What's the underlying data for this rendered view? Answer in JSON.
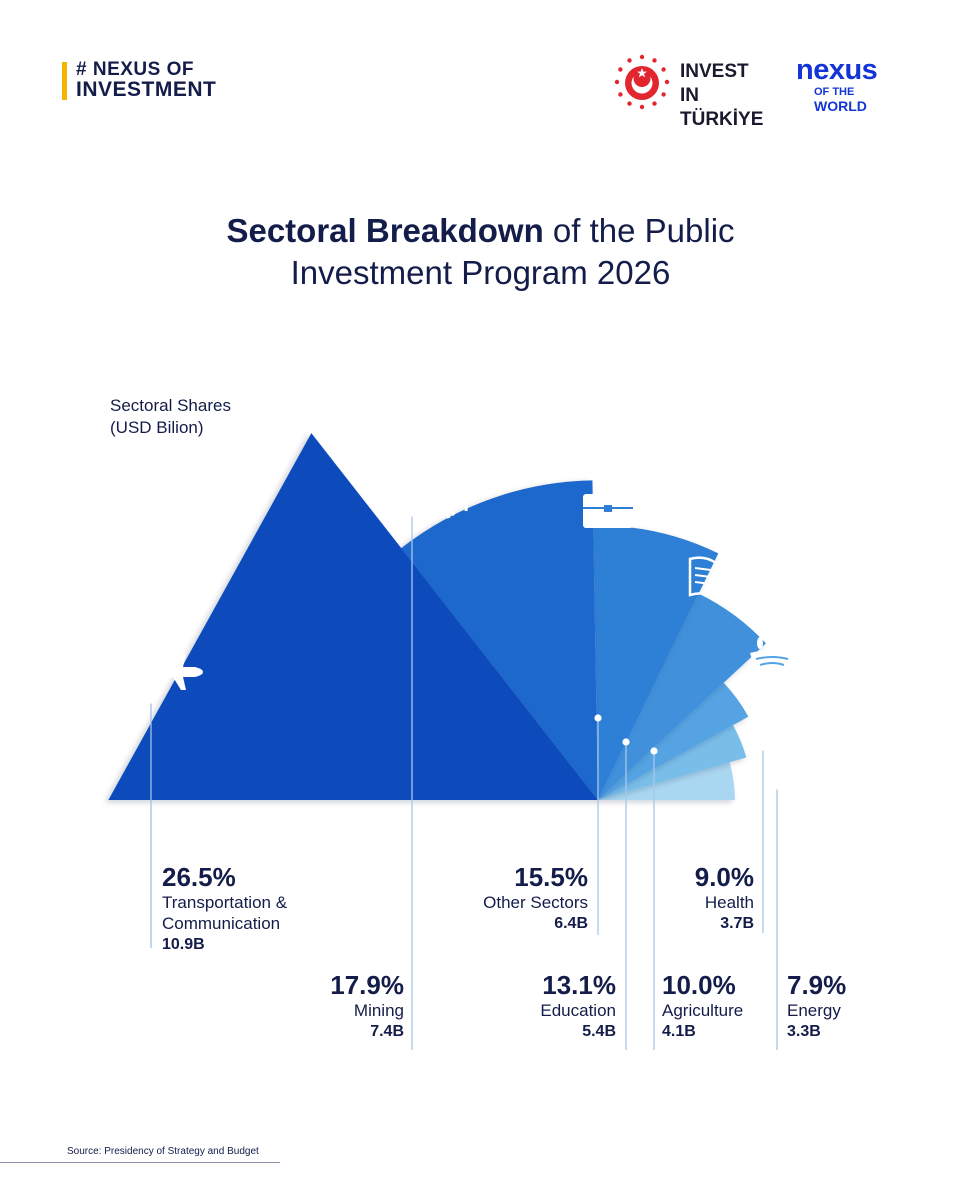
{
  "header": {
    "brand_line1": "# NEXUS OF",
    "brand_line2": "INVESTMENT",
    "invest_line1": "INVEST IN",
    "invest_line2": "TÜRKİYE",
    "nexus_word": "nexus",
    "nexus_sub_small": "OF THE",
    "nexus_sub_big": "WORLD",
    "colors": {
      "accent_yellow": "#f5b400",
      "navy": "#141c4a",
      "nexus_blue": "#1435d6",
      "invest_red": "#e1262d"
    }
  },
  "chart_data": {
    "type": "pie",
    "title_bold": "Sectoral Breakdown",
    "title_rest": " of the Public",
    "title_line2": "Investment Program 2026",
    "subtitle_line1": "Sectoral Shares",
    "subtitle_line2": "(USD Bilion)",
    "series": [
      {
        "name_line1": "Transportation &",
        "name_line2": "Communication",
        "percent": 26.5,
        "percent_label": "26.5%",
        "value": 10.9,
        "value_label": "10.9B",
        "icon": "airplane-icon",
        "color": "#0c4bbd"
      },
      {
        "name_line1": "Mining",
        "name_line2": "",
        "percent": 17.9,
        "percent_label": "17.9%",
        "value": 7.4,
        "value_label": "7.4B",
        "icon": "mining-gear-icon",
        "color": "#1e67cc"
      },
      {
        "name_line1": "Other Sectors",
        "name_line2": "",
        "percent": 15.5,
        "percent_label": "15.5%",
        "value": 6.4,
        "value_label": "6.4B",
        "icon": "briefcase-icon",
        "color": "#2f7fd6"
      },
      {
        "name_line1": "Education",
        "name_line2": "",
        "percent": 13.1,
        "percent_label": "13.1%",
        "value": 5.4,
        "value_label": "5.4B",
        "icon": "book-icon",
        "color": "#3f90dc"
      },
      {
        "name_line1": "Agriculture",
        "name_line2": "",
        "percent": 10.0,
        "percent_label": "10.0%",
        "value": 4.1,
        "value_label": "4.1B",
        "icon": "agriculture-icon",
        "color": "#55a3e2"
      },
      {
        "name_line1": "Health",
        "name_line2": "",
        "percent": 9.0,
        "percent_label": "9.0%",
        "value": 3.7,
        "value_label": "3.7B",
        "icon": "heart-pulse-icon",
        "color": "#79bde9"
      },
      {
        "name_line1": "Energy",
        "name_line2": "",
        "percent": 7.9,
        "percent_label": "7.9%",
        "value": 3.3,
        "value_label": "3.3B",
        "icon": "energy-bolt-icon",
        "color": "#a9d6f1"
      }
    ]
  },
  "footer": {
    "source": "Source: Presidency of Strategy and Budget"
  }
}
